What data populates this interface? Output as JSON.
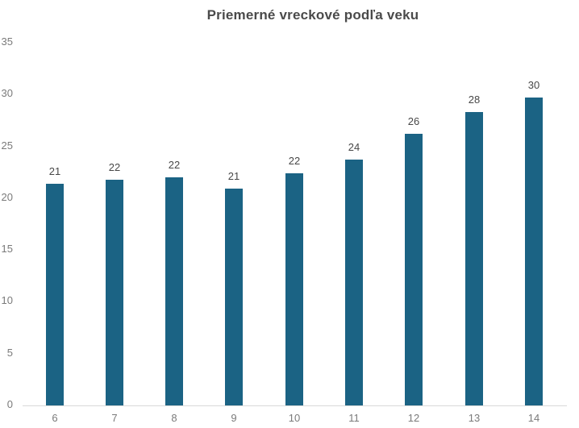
{
  "chart": {
    "title": "Priemerné vreckové podľa veku"
  },
  "chart_data": {
    "type": "bar",
    "title": "Priemerné vreckové podľa veku",
    "categories": [
      "6",
      "7",
      "8",
      "9",
      "10",
      "11",
      "12",
      "13",
      "14"
    ],
    "values": [
      21,
      22,
      22,
      21,
      22,
      24,
      26,
      28,
      30
    ],
    "values_precise": [
      21.4,
      21.8,
      22.0,
      20.9,
      22.4,
      23.7,
      26.2,
      28.3,
      29.7
    ],
    "data_labels_shown": true,
    "xlabel": "",
    "ylabel": "",
    "ylim": [
      0,
      35
    ],
    "yticks": [
      0,
      5,
      10,
      15,
      20,
      25,
      30,
      35
    ],
    "grid": false,
    "legend": false,
    "colors": {
      "bar": "#1B6384",
      "title_text": "#4A4A4A",
      "data_label_text": "#474747",
      "axis_label_text": "#7A7A7A",
      "axis_line": "#D9D9D9",
      "background": "#FFFFFF"
    }
  }
}
